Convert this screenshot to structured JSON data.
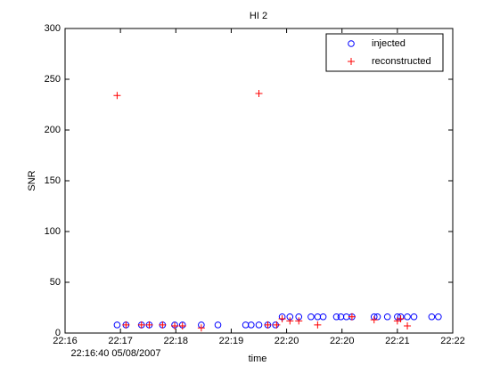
{
  "chart_data": {
    "type": "scatter",
    "title": "HI 2",
    "xlabel": "time",
    "x_offset_label": "22:16:40 05/08/2007",
    "ylabel": "SNR",
    "xlim": [
      0,
      350
    ],
    "xticks": [
      {
        "value": 0,
        "label": "22:16"
      },
      {
        "value": 50,
        "label": "22:17"
      },
      {
        "value": 100,
        "label": "22:18"
      },
      {
        "value": 150,
        "label": "22:19"
      },
      {
        "value": 200,
        "label": "22:20"
      },
      {
        "value": 250,
        "label": "22:20"
      },
      {
        "value": 300,
        "label": "22:21"
      },
      {
        "value": 350,
        "label": "22:22"
      }
    ],
    "ylim": [
      0,
      300
    ],
    "yticks": [
      0,
      50,
      100,
      150,
      200,
      250,
      300
    ],
    "legend": "upper right",
    "series": [
      {
        "name": "injected",
        "color": "#0000ff",
        "marker": "circle",
        "x": [
          47,
          55,
          69,
          76,
          88,
          99,
          106,
          123,
          138,
          163,
          168,
          175,
          183,
          190,
          196,
          203,
          211,
          222,
          228,
          233,
          245,
          249,
          254,
          259,
          279,
          282,
          291,
          300,
          303,
          309,
          315,
          331,
          337
        ],
        "values": [
          8,
          8,
          8,
          8,
          8,
          8,
          8,
          8,
          8,
          8,
          8,
          8,
          8,
          8,
          16,
          16,
          16,
          16,
          16,
          16,
          16,
          16,
          16,
          16,
          16,
          16,
          16,
          16,
          16,
          16,
          16,
          16,
          16
        ]
      },
      {
        "name": "reconstructed",
        "color": "#ff0000",
        "marker": "plus",
        "x": [
          47,
          55,
          69,
          76,
          88,
          99,
          106,
          123,
          175,
          183,
          191,
          196,
          203,
          211,
          228,
          259,
          279,
          300,
          303,
          309
        ],
        "values": [
          234,
          8,
          8,
          8,
          8,
          7,
          7,
          5,
          236,
          8,
          8,
          14,
          12,
          12,
          8,
          16,
          13,
          12,
          14,
          7
        ]
      }
    ]
  }
}
